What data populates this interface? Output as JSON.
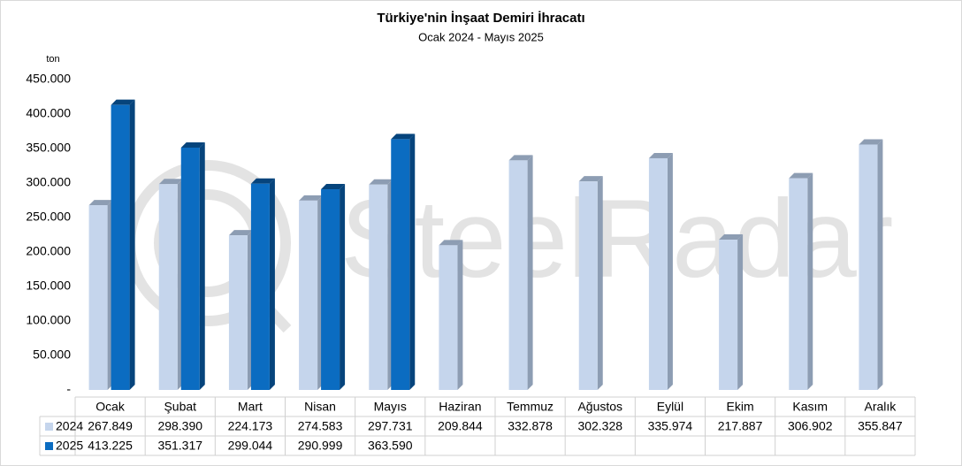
{
  "chart_data": {
    "type": "bar",
    "title": "Türkiye'nin İnşaat Demiri İhracatı",
    "subtitle": "Ocak 2024 - Mayıs 2025",
    "y_label": "ton",
    "watermark": "SteelRadar",
    "categories": [
      "Ocak",
      "Şubat",
      "Mart",
      "Nisan",
      "Mayıs",
      "Haziran",
      "Temmuz",
      "Ağustos",
      "Eylül",
      "Ekim",
      "Kasım",
      "Aralık"
    ],
    "series": [
      {
        "name": "2024",
        "color": "#c5d5ec",
        "side_color": "#8d9db3",
        "values": [
          267849,
          298390,
          224173,
          274583,
          297731,
          209844,
          332878,
          302328,
          335974,
          217887,
          306902,
          355847
        ],
        "value_labels": [
          "267.849",
          "298.390",
          "224.173",
          "274.583",
          "297.731",
          "209.844",
          "332.878",
          "302.328",
          "335.974",
          "217.887",
          "306.902",
          "355.847"
        ]
      },
      {
        "name": "2025",
        "color": "#0b6cc1",
        "side_color": "#06447c",
        "values": [
          413225,
          351317,
          299044,
          290999,
          363590,
          null,
          null,
          null,
          null,
          null,
          null,
          null
        ],
        "value_labels": [
          "413.225",
          "351.317",
          "299.044",
          "290.999",
          "363.590",
          null,
          null,
          null,
          null,
          null,
          null,
          null
        ]
      }
    ],
    "ylim": [
      0,
      450000
    ],
    "yticks": [
      {
        "value": 0,
        "label": "-"
      },
      {
        "value": 50000,
        "label": "50.000"
      },
      {
        "value": 100000,
        "label": "100.000"
      },
      {
        "value": 150000,
        "label": "150.000"
      },
      {
        "value": 200000,
        "label": "200.000"
      },
      {
        "value": 250000,
        "label": "250.000"
      },
      {
        "value": 300000,
        "label": "300.000"
      },
      {
        "value": 350000,
        "label": "350.000"
      },
      {
        "value": 400000,
        "label": "400.000"
      },
      {
        "value": 450000,
        "label": "450.000"
      }
    ],
    "grid": false
  }
}
